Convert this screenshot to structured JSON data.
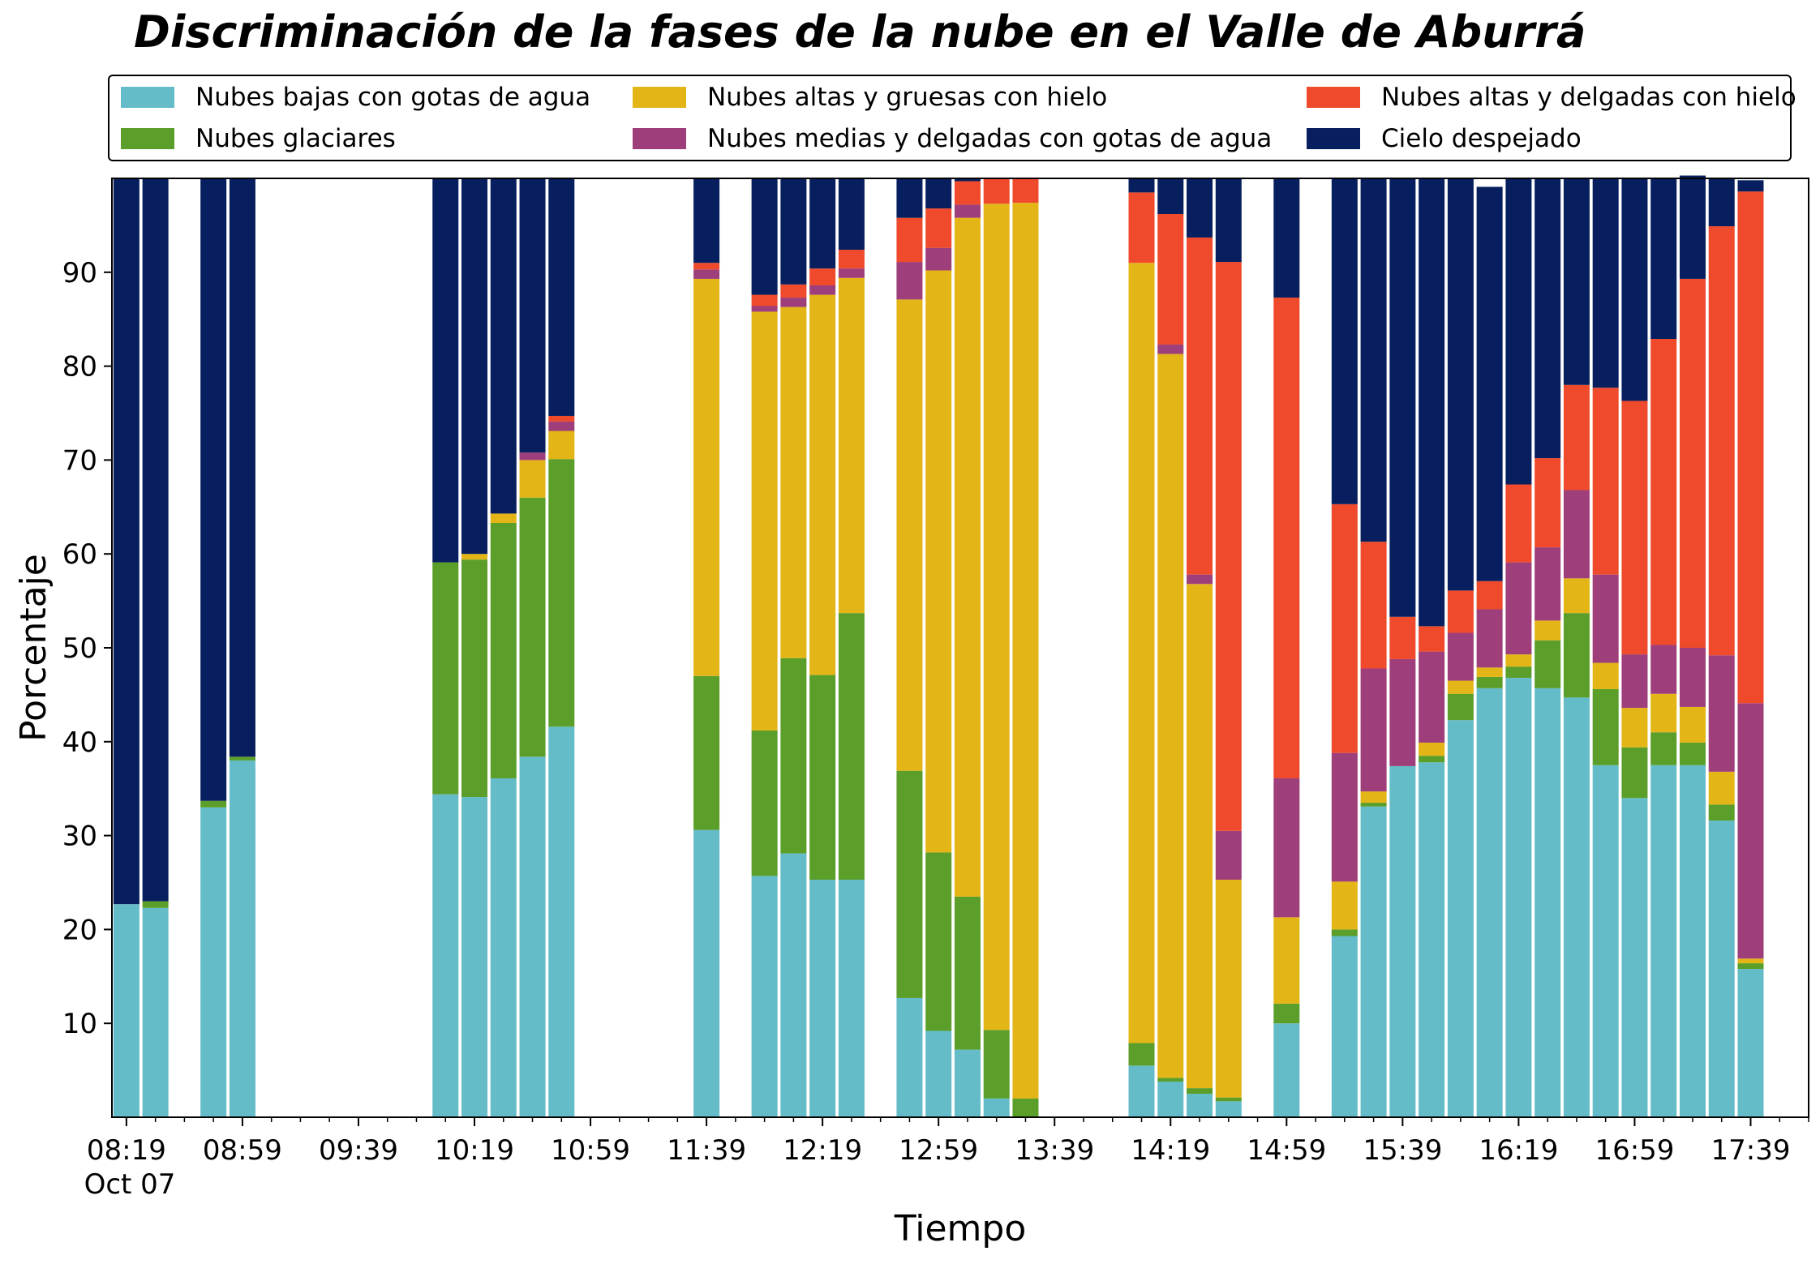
{
  "chart_data": {
    "type": "bar",
    "stacked": true,
    "title": "Discriminación de la fases de la nube en el Valle de Aburrá",
    "xlabel": "Tiempo",
    "ylabel": "Porcentaje",
    "ylim": [
      0,
      100
    ],
    "yticks": [
      10,
      20,
      30,
      40,
      50,
      60,
      70,
      80,
      90
    ],
    "xlim": [
      "08:14",
      "17:59"
    ],
    "x_date_label": "Oct 07",
    "xticks": [
      "08:19",
      "08:59",
      "09:39",
      "10:19",
      "10:59",
      "11:39",
      "12:19",
      "12:59",
      "13:39",
      "14:19",
      "14:59",
      "15:39",
      "16:19",
      "16:59",
      "17:39"
    ],
    "grid": false,
    "legend_position": "top",
    "x": [
      "08:19",
      "08:29",
      "08:49",
      "08:59",
      "10:09",
      "10:19",
      "10:29",
      "10:39",
      "10:49",
      "11:39",
      "11:59",
      "12:09",
      "12:19",
      "12:29",
      "12:49",
      "12:59",
      "13:09",
      "13:19",
      "13:29",
      "14:09",
      "14:19",
      "14:29",
      "14:39",
      "14:59",
      "15:19",
      "15:29",
      "15:39",
      "15:49",
      "15:59",
      "16:09",
      "16:19",
      "16:29",
      "16:39",
      "16:49",
      "16:59",
      "17:09",
      "17:19",
      "17:29",
      "17:39"
    ],
    "series": [
      {
        "name": "Nubes bajas con gotas de agua",
        "color": "#64bcc8",
        "values": [
          22.7,
          22.3,
          33.0,
          38.0,
          34.4,
          34.1,
          36.1,
          38.4,
          41.6,
          30.6,
          25.7,
          28.1,
          25.3,
          25.3,
          12.7,
          9.2,
          7.2,
          2.0,
          0.0,
          5.5,
          3.8,
          2.5,
          1.7,
          10.0,
          19.3,
          33.1,
          37.4,
          37.8,
          42.3,
          45.7,
          46.8,
          45.7,
          44.7,
          37.5,
          34.0,
          37.5,
          37.5,
          31.6,
          15.8
        ]
      },
      {
        "name": "Nubes glaciares",
        "color": "#5b9e2a",
        "values": [
          0.0,
          0.7,
          0.7,
          0.4,
          24.7,
          25.3,
          27.2,
          27.6,
          28.5,
          16.4,
          15.5,
          20.8,
          21.8,
          28.4,
          24.2,
          19.0,
          16.3,
          7.3,
          2.0,
          2.4,
          0.4,
          0.6,
          0.4,
          2.1,
          0.7,
          0.4,
          0.0,
          0.7,
          2.8,
          1.2,
          1.2,
          5.1,
          9.0,
          8.1,
          5.4,
          3.5,
          2.4,
          1.7,
          0.6
        ]
      },
      {
        "name": "Nubes altas y gruesas con hielo",
        "color": "#e3b516",
        "values": [
          0,
          0,
          0,
          0,
          0,
          0.6,
          1.0,
          4.0,
          3.0,
          42.3,
          44.6,
          37.4,
          40.5,
          35.7,
          50.2,
          62.0,
          72.3,
          88.0,
          95.4,
          83.1,
          77.1,
          53.7,
          23.2,
          9.2,
          5.1,
          1.2,
          0.0,
          1.4,
          1.4,
          1.0,
          1.3,
          2.1,
          3.7,
          2.8,
          4.2,
          4.1,
          3.8,
          3.5,
          0.5
        ]
      },
      {
        "name": "Nubes medias y delgadas con gotas de agua",
        "color": "#9e3e7a",
        "values": [
          0,
          0,
          0,
          0,
          0,
          0,
          0,
          0.8,
          1.0,
          1.0,
          0.6,
          1.0,
          1.0,
          1.0,
          4.0,
          2.4,
          1.4,
          0,
          0,
          0,
          1.0,
          1.0,
          5.2,
          14.8,
          13.7,
          13.1,
          11.4,
          9.7,
          5.1,
          6.2,
          9.8,
          7.8,
          9.4,
          9.4,
          5.7,
          5.2,
          6.3,
          12.4,
          27.2
        ]
      },
      {
        "name": "Nubes altas y delgadas con hielo",
        "color": "#ef4a2c",
        "values": [
          0,
          0,
          0,
          0,
          0,
          0,
          0,
          0,
          0.6,
          0.7,
          1.2,
          1.4,
          1.8,
          2.0,
          4.7,
          4.2,
          2.5,
          2.7,
          2.6,
          7.5,
          13.9,
          35.9,
          60.6,
          51.2,
          26.5,
          13.5,
          4.5,
          2.7,
          4.5,
          3.0,
          8.3,
          9.5,
          11.2,
          19.9,
          27.0,
          32.6,
          39.3,
          45.7,
          54.5
        ]
      },
      {
        "name": "Cielo despejado",
        "color": "#071f5e",
        "values": [
          77.3,
          77.0,
          66.3,
          61.6,
          40.9,
          40.0,
          35.7,
          29.2,
          25.3,
          9.0,
          12.4,
          11.3,
          9.6,
          7.6,
          4.2,
          3.2,
          0.3,
          0,
          0,
          1.5,
          3.8,
          6.3,
          8.9,
          12.7,
          34.7,
          38.7,
          46.7,
          47.7,
          43.9,
          42.0,
          32.6,
          29.8,
          22.0,
          22.3,
          23.7,
          17.1,
          11.0,
          5.1,
          1.2
        ]
      }
    ]
  }
}
